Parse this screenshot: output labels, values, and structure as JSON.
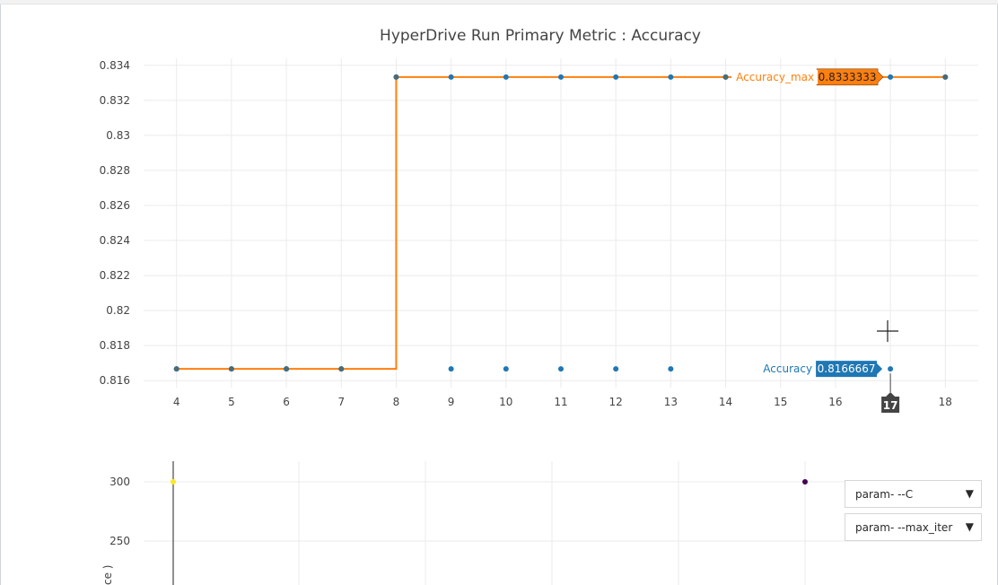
{
  "chart_data": [
    {
      "type": "line",
      "title": "HyperDrive Run Primary Metric : Accuracy",
      "xlabel": "",
      "ylabel": "",
      "x_ticks": [
        4,
        5,
        6,
        7,
        8,
        9,
        10,
        11,
        12,
        13,
        14,
        15,
        16,
        17,
        18
      ],
      "y_ticks": [
        "0.816",
        "0.818",
        "0.82",
        "0.822",
        "0.824",
        "0.826",
        "0.828",
        "0.83",
        "0.832",
        "0.834"
      ],
      "ylim": [
        0.8156,
        0.8344
      ],
      "xlim": [
        3.4,
        18.6
      ],
      "grid": true,
      "series": [
        {
          "name": "Accuracy",
          "color": "#1f77b4",
          "mode": "markers",
          "x": [
            4,
            5,
            6,
            7,
            8,
            9,
            10,
            11,
            12,
            13,
            14,
            17,
            18
          ],
          "y": [
            0.8166667,
            0.8166667,
            0.8166667,
            0.8166667,
            0.8333333,
            0.8166667,
            0.8166667,
            0.8166667,
            0.8166667,
            0.8166667,
            0.8333333,
            0.8166667,
            0.8333333
          ]
        },
        {
          "name": "Accuracy_max",
          "color": "#ff7f0e",
          "mode": "step-line",
          "x": [
            4,
            5,
            6,
            7,
            8,
            9,
            10,
            11,
            12,
            13,
            14,
            17,
            18
          ],
          "y": [
            0.8166667,
            0.8166667,
            0.8166667,
            0.8166667,
            0.8333333,
            0.8333333,
            0.8333333,
            0.8333333,
            0.8333333,
            0.8333333,
            0.8333333,
            0.8333333,
            0.8333333
          ]
        }
      ],
      "hover": {
        "x_label": "17",
        "accuracy_label": "Accuracy",
        "accuracy_value": "0.8166667",
        "max_label": "Accuracy_max",
        "max_value": "0.8333333"
      }
    },
    {
      "type": "scatter",
      "y_ticks": [
        "300",
        "250"
      ],
      "ylabel_fragment": "ce )",
      "points": [
        {
          "y": 300,
          "color": "#fde725"
        },
        {
          "y": 300,
          "color": "#440154"
        }
      ]
    }
  ],
  "dropdowns": [
    {
      "label": "param- --C"
    },
    {
      "label": "param- --max_iter"
    }
  ],
  "icons": [
    "crosshair-cursor-icon",
    "caret-down-icon"
  ]
}
